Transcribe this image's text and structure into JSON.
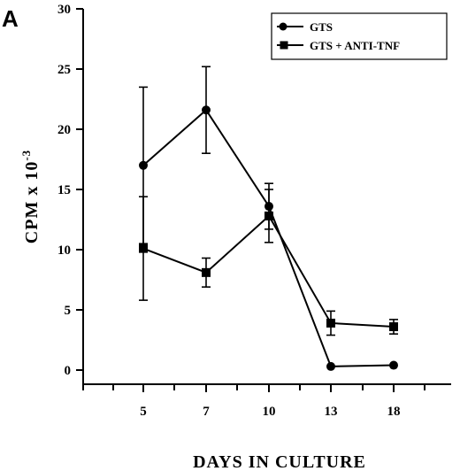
{
  "panel_label": "A",
  "chart_data": {
    "type": "line",
    "categories": [
      "5",
      "7",
      "10",
      "13",
      "18"
    ],
    "ylabel_main": "CPM  x  10",
    "ylabel_exp": "-3",
    "xlabel": "DAYS  IN  CULTURE",
    "ylim": [
      0,
      30
    ],
    "yticks": [
      0,
      5,
      10,
      15,
      20,
      25,
      30
    ],
    "grid": false,
    "legend_position": "top-right",
    "series": [
      {
        "name": "GTS",
        "marker": "circle",
        "values": [
          17.0,
          21.6,
          13.6,
          0.3,
          0.4
        ],
        "errors": [
          6.5,
          3.6,
          1.9,
          0,
          0
        ]
      },
      {
        "name": "GTS + ANTI-TNF",
        "marker": "square",
        "values": [
          10.1,
          8.1,
          12.8,
          3.9,
          3.6
        ],
        "errors": [
          4.3,
          1.2,
          2.2,
          1.0,
          0.6
        ]
      }
    ],
    "colors": {
      "line": "#000000",
      "background": "#ffffff"
    }
  }
}
